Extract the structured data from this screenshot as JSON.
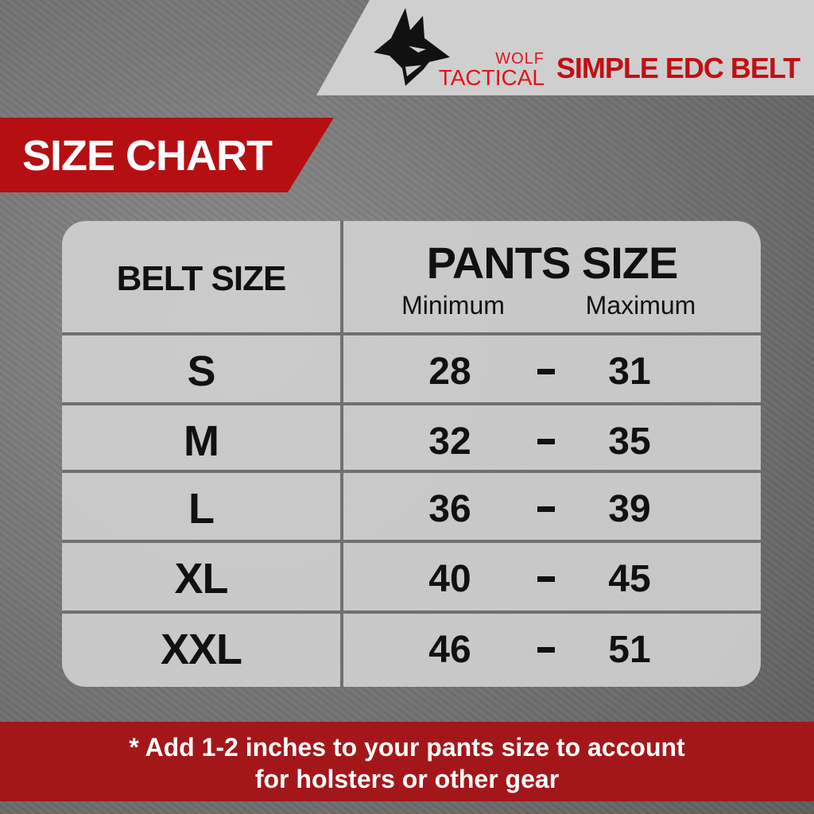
{
  "header": {
    "brand_line1": "WOLF",
    "brand_line2": "TACTICAL",
    "product": "SIMPLE EDC BELT",
    "logo_icon": "wolf-head-icon"
  },
  "title": "SIZE CHART",
  "table": {
    "col1_header": "BELT SIZE",
    "col2_header": "PANTS SIZE",
    "min_label": "Minimum",
    "max_label": "Maximum",
    "separator": "-",
    "rows": [
      {
        "size": "S",
        "min": "28",
        "max": "31"
      },
      {
        "size": "M",
        "min": "32",
        "max": "35"
      },
      {
        "size": "L",
        "min": "36",
        "max": "39"
      },
      {
        "size": "XL",
        "min": "40",
        "max": "45"
      },
      {
        "size": "XXL",
        "min": "46",
        "max": "51"
      }
    ]
  },
  "footer": {
    "line1": "* Add 1-2 inches to your pants size to account",
    "line2": "for holsters or other gear"
  },
  "colors": {
    "red": "#b50f13",
    "brand_red": "#e0141b",
    "panel": "#d2d2d2",
    "background": "#777777"
  }
}
